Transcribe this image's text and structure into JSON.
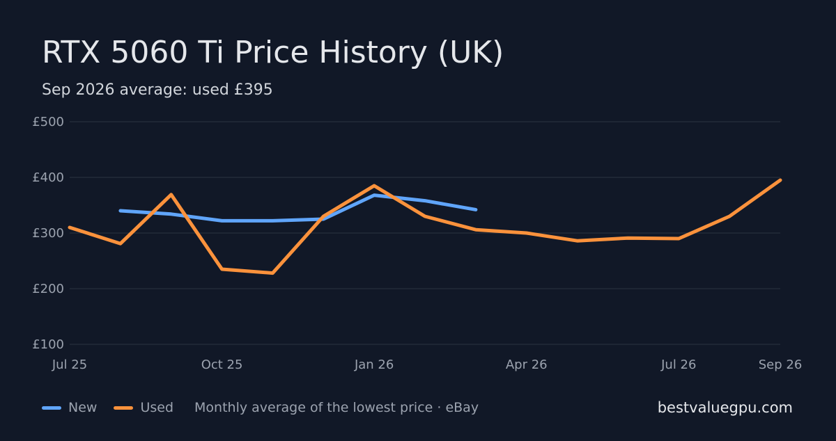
{
  "colors": {
    "background": "#111827",
    "grid": "#2b3441",
    "new": "#60a5fa",
    "used": "#fb923c"
  },
  "header": {
    "title": "RTX 5060 Ti Price History (UK)",
    "subtitle": "Sep 2026 average: used £395"
  },
  "legend": {
    "items": [
      {
        "label": "New",
        "color": "#60a5fa"
      },
      {
        "label": "Used",
        "color": "#fb923c"
      }
    ],
    "note": "Monthly average of the lowest price · eBay"
  },
  "brand": "bestvaluegpu.com",
  "chart_data": {
    "type": "line",
    "title": "RTX 5060 Ti Price History (UK)",
    "subtitle": "Sep 2026 average: used £395",
    "x": [
      "2025-07",
      "2025-08",
      "2025-09",
      "2025-10",
      "2025-11",
      "2025-12",
      "2026-01",
      "2026-02",
      "2026-03",
      "2026-04",
      "2026-05",
      "2026-06",
      "2026-07",
      "2026-08",
      "2026-09"
    ],
    "x_ticks": [
      {
        "x": "2025-07",
        "label": "Jul 25"
      },
      {
        "x": "2025-10",
        "label": "Oct 25"
      },
      {
        "x": "2026-01",
        "label": "Jan 26"
      },
      {
        "x": "2026-04",
        "label": "Apr 26"
      },
      {
        "x": "2026-07",
        "label": "Jul 26"
      },
      {
        "x": "2026-09",
        "label": "Sep 26"
      }
    ],
    "y_ticks": [
      {
        "value": 500,
        "label": "£500"
      },
      {
        "value": 400,
        "label": "£400"
      },
      {
        "value": 300,
        "label": "£300"
      },
      {
        "value": 200,
        "label": "£200"
      },
      {
        "value": 100,
        "label": "£100"
      }
    ],
    "ylim": [
      100,
      500
    ],
    "grid": true,
    "legend": "bottom-left",
    "series": [
      {
        "name": "New",
        "color": "#60a5fa",
        "values": [
          null,
          340,
          334,
          322,
          322,
          325,
          368,
          358,
          342,
          null,
          null,
          null,
          null,
          null,
          null
        ]
      },
      {
        "name": "Used",
        "color": "#fb923c",
        "values": [
          310,
          281,
          369,
          235,
          228,
          330,
          385,
          330,
          306,
          300,
          286,
          291,
          290,
          330,
          395
        ]
      }
    ]
  }
}
